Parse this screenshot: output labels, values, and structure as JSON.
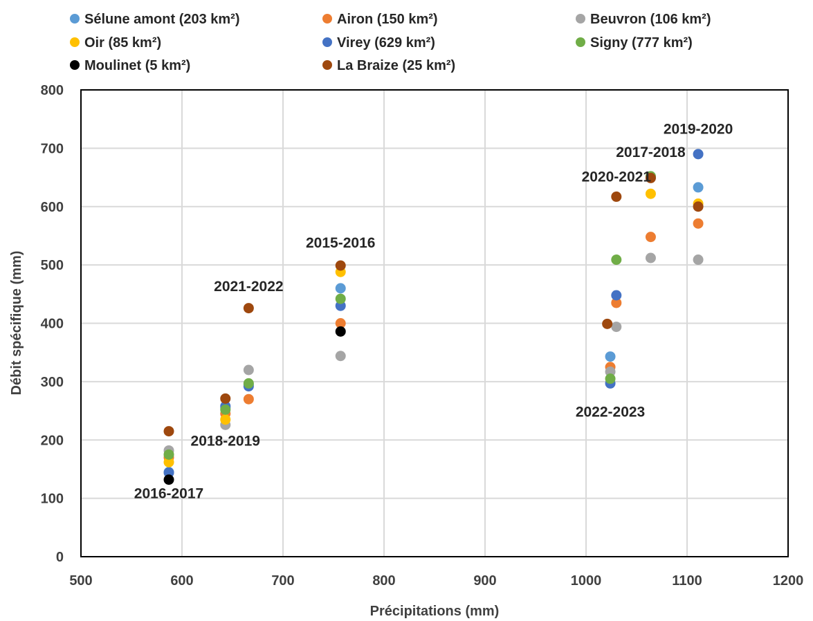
{
  "chart_data": {
    "type": "scatter",
    "xlabel": "Précipitations (mm)",
    "ylabel": "Débit spécifique (mm)",
    "xlim": [
      500,
      1200
    ],
    "ylim": [
      0,
      800
    ],
    "xticks": [
      "500",
      "600",
      "700",
      "800",
      "900",
      "1000",
      "1100",
      "1200"
    ],
    "yticks": [
      "0",
      "100",
      "200",
      "300",
      "400",
      "500",
      "600",
      "700",
      "800"
    ],
    "grid": true,
    "legend_position": "top",
    "series": [
      {
        "name": "Sélune amont (203 km²)",
        "color": "#5B9BD5",
        "points": [
          [
            587,
            145
          ],
          [
            643,
            255
          ],
          [
            666,
            295
          ],
          [
            757,
            460
          ],
          [
            1024,
            343
          ],
          [
            1064,
            650
          ],
          [
            1111,
            633
          ]
        ]
      },
      {
        "name": "Airon (150 km²)",
        "color": "#ED7D31",
        "points": [
          [
            587,
            170
          ],
          [
            643,
            245
          ],
          [
            666,
            270
          ],
          [
            757,
            400
          ],
          [
            1024,
            325
          ],
          [
            1030,
            435
          ],
          [
            1064,
            548
          ],
          [
            1111,
            571
          ]
        ]
      },
      {
        "name": "Beuvron (106 km²)",
        "color": "#A5A5A5",
        "points": [
          [
            587,
            182
          ],
          [
            643,
            226
          ],
          [
            666,
            320
          ],
          [
            757,
            344
          ],
          [
            1024,
            317
          ],
          [
            1030,
            394
          ],
          [
            1064,
            512
          ],
          [
            1111,
            509
          ]
        ]
      },
      {
        "name": "Oir (85 km²)",
        "color": "#FFC000",
        "points": [
          [
            587,
            162
          ],
          [
            643,
            235
          ],
          [
            757,
            488
          ],
          [
            1064,
            622
          ],
          [
            1111,
            605
          ]
        ]
      },
      {
        "name": "Virey (629 km²)",
        "color": "#4472C4",
        "points": [
          [
            587,
            144
          ],
          [
            643,
            258
          ],
          [
            666,
            292
          ],
          [
            757,
            430
          ],
          [
            1024,
            297
          ],
          [
            1030,
            448
          ],
          [
            1111,
            690
          ]
        ]
      },
      {
        "name": "Signy (777 km²)",
        "color": "#70AD47",
        "points": [
          [
            587,
            175
          ],
          [
            643,
            252
          ],
          [
            666,
            297
          ],
          [
            757,
            442
          ],
          [
            1024,
            305
          ],
          [
            1030,
            509
          ],
          [
            1064,
            652
          ]
        ]
      },
      {
        "name": "Moulinet (5 km²)",
        "color": "#000000",
        "points": [
          [
            587,
            132
          ],
          [
            757,
            386
          ]
        ]
      },
      {
        "name": "La Braize (25 km²)",
        "color": "#9E480E",
        "points": [
          [
            587,
            215
          ],
          [
            643,
            271
          ],
          [
            666,
            426
          ],
          [
            757,
            499
          ],
          [
            1021,
            399
          ],
          [
            1030,
            617
          ],
          [
            1064,
            649
          ],
          [
            1111,
            600
          ]
        ]
      }
    ],
    "annotations": [
      {
        "text": "2016-2017",
        "x": 587,
        "y": 100
      },
      {
        "text": "2018-2019",
        "x": 643,
        "y": 190
      },
      {
        "text": "2021-2022",
        "x": 666,
        "y": 455
      },
      {
        "text": "2015-2016",
        "x": 757,
        "y": 530
      },
      {
        "text": "2022-2023",
        "x": 1024,
        "y": 240
      },
      {
        "text": "2020-2021",
        "x": 1030,
        "y": 643
      },
      {
        "text": "2017-2018",
        "x": 1064,
        "y": 685
      },
      {
        "text": "2019-2020",
        "x": 1111,
        "y": 725
      }
    ]
  }
}
